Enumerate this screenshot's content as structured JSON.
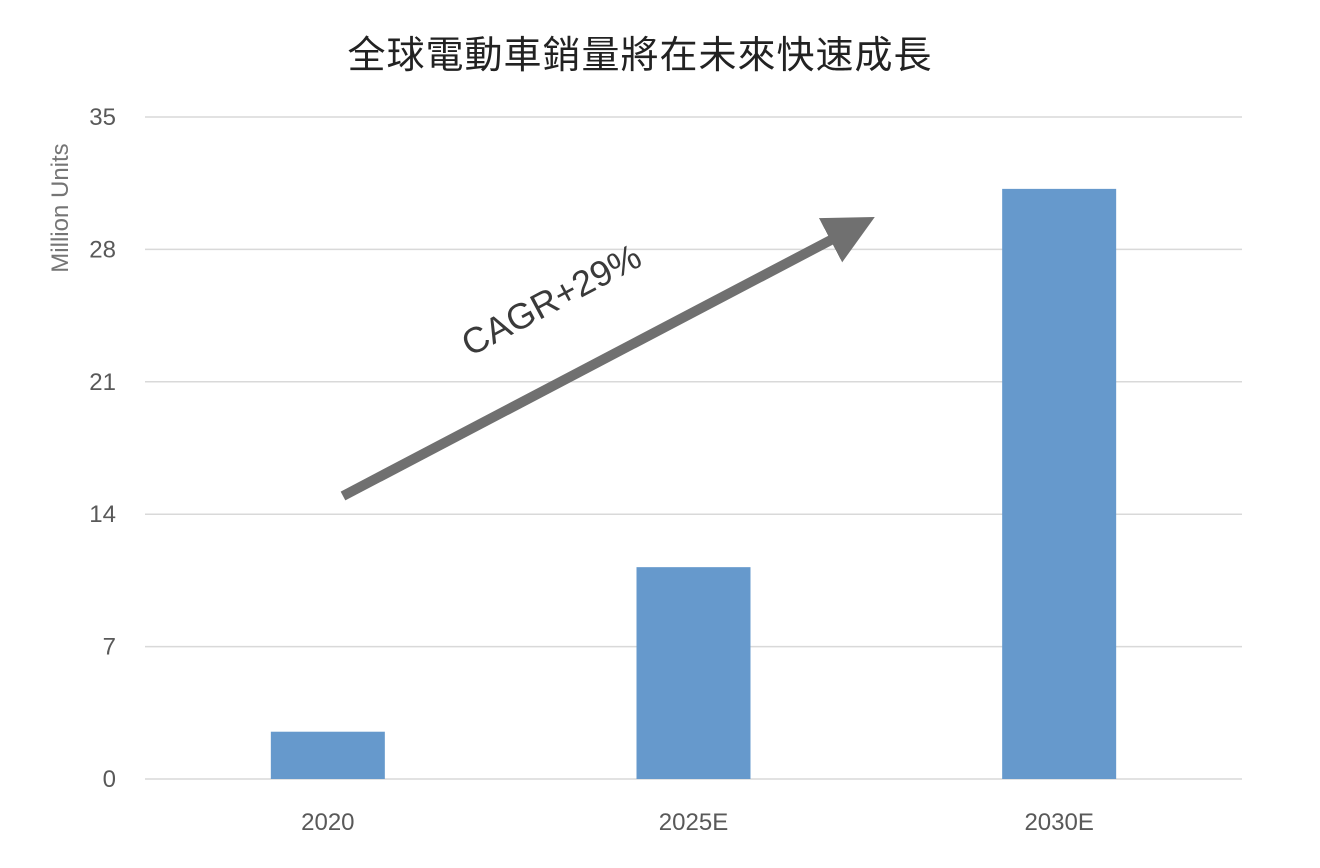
{
  "chart_data": {
    "type": "bar",
    "title": "全球電動車銷量將在未來快速成長",
    "ylabel": "Million Units",
    "xlabel": "",
    "categories": [
      "2020",
      "2025E",
      "2030E"
    ],
    "values": [
      2.5,
      11.2,
      31.2
    ],
    "ylim": [
      0,
      35
    ],
    "yticks": [
      0,
      7,
      14,
      21,
      28,
      35
    ],
    "grid": true,
    "legend": "none",
    "bar_color": "#6699cc",
    "annotation": {
      "text": "CAGR+29%",
      "arrow_color": "#707070"
    }
  }
}
